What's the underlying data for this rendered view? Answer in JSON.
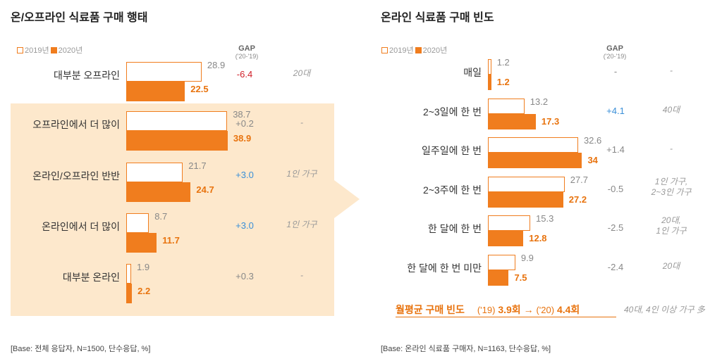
{
  "left": {
    "title": "온/오프라인 식료품 구매 행태",
    "legend": {
      "y2019": "2019년",
      "y2020": "2020년"
    },
    "gap_header": {
      "label": "GAP",
      "sub": "('20-'19)"
    },
    "base": "[Base: 전체 응답자, N=1500, 단수응답, %]"
  },
  "right": {
    "title": "온라인 식료품 구매 빈도",
    "legend": {
      "y2019": "2019년",
      "y2020": "2020년"
    },
    "gap_header": {
      "label": "GAP",
      "sub": "('20-'19)"
    },
    "base": "[Base: 온라인 식료품 구매자, N=1163, 단수응답, %]",
    "summary": {
      "label": "월평균 구매 빈도",
      "p19": "('19)",
      "v19": "3.9회",
      "arrow": "→",
      "p20": "('20)",
      "v20": "4.4회",
      "note": "40대, 4인 이상 가구 多"
    }
  },
  "colors": {
    "accent": "#f07d1e",
    "highlight": "#fde8cc",
    "negative": "#d0202a",
    "positive": "#3a8fd8"
  },
  "chart_data": [
    {
      "type": "bar",
      "title": "온/오프라인 식료품 구매 행태",
      "categories": [
        "대부분 오프라인",
        "오프라인에서 더 많이",
        "온라인/오프라인 반반",
        "온라인에서 더 많이",
        "대부분 온라인"
      ],
      "series": [
        {
          "name": "2019년",
          "values": [
            28.9,
            38.7,
            21.7,
            8.7,
            1.9
          ]
        },
        {
          "name": "2020년",
          "values": [
            22.5,
            38.9,
            24.7,
            11.7,
            2.2
          ]
        }
      ],
      "gap": [
        "-6.4",
        "+0.2",
        "+3.0",
        "+3.0",
        "+0.3"
      ],
      "notes": [
        "20대",
        "-",
        "1인 가구",
        "1인 가구",
        "-"
      ],
      "xlim": [
        0,
        40
      ]
    },
    {
      "type": "bar",
      "title": "온라인 식료품 구매 빈도",
      "categories": [
        "매일",
        "2~3일에 한 번",
        "일주일에 한 번",
        "2~3주에 한 번",
        "한 달에 한 번",
        "한 달에 한 번 미만"
      ],
      "series": [
        {
          "name": "2019년",
          "values": [
            1.2,
            13.2,
            32.6,
            27.7,
            15.3,
            9.9
          ]
        },
        {
          "name": "2020년",
          "values": [
            1.2,
            17.3,
            34.0,
            27.2,
            12.8,
            7.5
          ]
        }
      ],
      "gap": [
        "-",
        "+4.1",
        "+1.4",
        "-0.5",
        "-2.5",
        "-2.4"
      ],
      "notes": [
        "-",
        "40대",
        "-",
        "1인 가구,\n2~3인 가구",
        "20대,\n1인 가구",
        "20대"
      ],
      "xlim": [
        0,
        40
      ]
    }
  ]
}
